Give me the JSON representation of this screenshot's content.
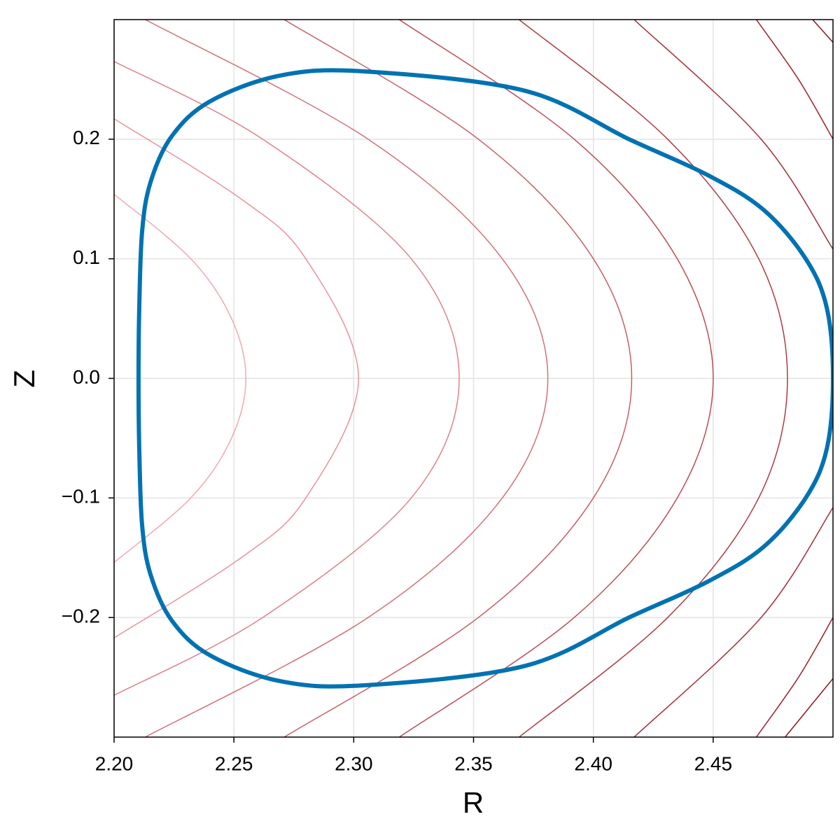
{
  "chart_data": {
    "type": "contour",
    "xlabel": "R",
    "ylabel": "Z",
    "xlim": [
      2.2,
      2.5
    ],
    "ylim": [
      -0.3,
      0.3
    ],
    "xticks": [
      {
        "value": 2.2,
        "label": "2.20"
      },
      {
        "value": 2.25,
        "label": "2.25"
      },
      {
        "value": 2.3,
        "label": "2.30"
      },
      {
        "value": 2.35,
        "label": "2.35"
      },
      {
        "value": 2.4,
        "label": "2.40"
      },
      {
        "value": 2.45,
        "label": "2.45"
      }
    ],
    "yticks": [
      {
        "value": -0.2,
        "label": "−0.2"
      },
      {
        "value": -0.1,
        "label": "−0.1"
      },
      {
        "value": 0,
        "label": "0.0"
      },
      {
        "value": 0.1,
        "label": "0.1"
      },
      {
        "value": 0.2,
        "label": "0.2"
      }
    ],
    "grid": true,
    "series": [
      {
        "color": "#f2a7b1",
        "line_width": 1.5,
        "x": [
          2.2,
          2.232,
          2.249,
          2.255,
          2.249,
          2.232,
          2.2
        ],
        "y": [
          -0.154,
          -0.1,
          -0.05,
          0,
          0.05,
          0.1,
          0.154
        ]
      },
      {
        "color": "#e8929d",
        "line_width": 1.5,
        "x": [
          2.2,
          2.253,
          2.28,
          2.302,
          2.28,
          2.253,
          2.2
        ],
        "y": [
          -0.217,
          -0.15,
          -0.1,
          0,
          0.1,
          0.15,
          0.217
        ]
      },
      {
        "color": "#de828d",
        "line_width": 1.5,
        "x": [
          2.2,
          2.262,
          2.324,
          2.344,
          2.324,
          2.262,
          2.2
        ],
        "y": [
          -0.265,
          -0.2,
          -0.1,
          0,
          0.1,
          0.2,
          0.265
        ]
      },
      {
        "color": "#d27079",
        "line_width": 1.5,
        "x": [
          2.213,
          2.306,
          2.362,
          2.381,
          2.362,
          2.306,
          2.213
        ],
        "y": [
          -0.3,
          -0.2,
          -0.1,
          0,
          0.1,
          0.2,
          0.3
        ]
      },
      {
        "color": "#c65e67",
        "line_width": 1.5,
        "x": [
          2.271,
          2.352,
          2.4,
          2.416,
          2.4,
          2.352,
          2.271
        ],
        "y": [
          -0.3,
          -0.2,
          -0.1,
          0,
          0.1,
          0.2,
          0.3
        ]
      },
      {
        "color": "#ba4c55",
        "line_width": 1.5,
        "x": [
          2.319,
          2.392,
          2.435,
          2.45,
          2.435,
          2.392,
          2.319
        ],
        "y": [
          -0.3,
          -0.2,
          -0.1,
          0,
          0.1,
          0.2,
          0.3
        ]
      },
      {
        "color": "#ad3b44",
        "line_width": 1.5,
        "x": [
          2.369,
          2.431,
          2.469,
          2.481,
          2.469,
          2.431,
          2.369
        ],
        "y": [
          -0.3,
          -0.2,
          -0.1,
          0,
          0.1,
          0.2,
          0.3
        ]
      },
      {
        "color": "#a32c35",
        "line_width": 1.5,
        "x": [
          2.5,
          2.47,
          2.417,
          null,
          2.417,
          2.47,
          2.5
        ],
        "y": [
          -0.108,
          -0.2,
          -0.3,
          null,
          0.3,
          0.2,
          0.108
        ]
      },
      {
        "color": "#9a2028",
        "line_width": 1.5,
        "x": [
          2.5,
          2.4856,
          2.468,
          null,
          2.468,
          2.4856,
          2.5
        ],
        "y": [
          -0.2,
          -0.25,
          -0.3,
          null,
          0.3,
          0.25,
          0.2
        ]
      },
      {
        "color": "#8f141c",
        "line_width": 1.5,
        "x": [
          2.5,
          2.48,
          null,
          2.4915,
          2.5
        ],
        "y": [
          -0.251,
          -0.3,
          null,
          0.3,
          0.281
        ]
      },
      {
        "color": "#0072b2",
        "line_width": 6,
        "closed": true,
        "x": [
          2.5,
          2.4974,
          2.4886,
          2.471,
          2.4477,
          2.4155,
          2.3716,
          2.3044,
          2.2693,
          2.24,
          2.224,
          2.2152,
          2.2117,
          2.2105,
          2.2102,
          2.2105,
          2.2117,
          2.2152,
          2.224,
          2.24,
          2.2693,
          2.3044,
          2.3716,
          2.4155,
          2.4477,
          2.471,
          2.4886,
          2.4974
        ],
        "y": [
          0,
          0.059,
          0.1,
          0.141,
          0.17,
          0.1994,
          0.2404,
          0.2567,
          0.2532,
          0.2316,
          0.2023,
          0.164,
          0.123,
          0.059,
          0,
          -0.059,
          -0.123,
          -0.164,
          -0.2023,
          -0.2316,
          -0.2532,
          -0.2567,
          -0.2404,
          -0.1994,
          -0.17,
          -0.141,
          -0.1,
          -0.059
        ]
      }
    ]
  }
}
